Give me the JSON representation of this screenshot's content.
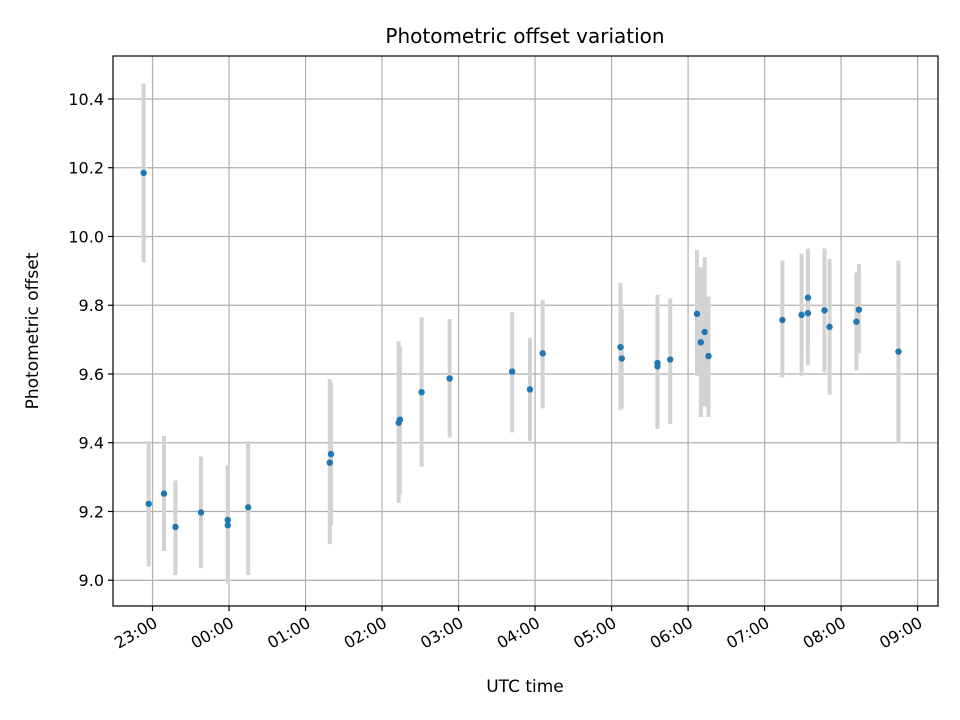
{
  "chart_data": {
    "type": "scatter",
    "title": "Photometric offset variation",
    "xlabel": "UTC time",
    "ylabel": "Photometric offset",
    "xlim": [
      "22:29",
      "09:16"
    ],
    "ylim": [
      8.925,
      10.525
    ],
    "grid": true,
    "x_ticks": [
      "23:00",
      "00:00",
      "01:00",
      "02:00",
      "03:00",
      "04:00",
      "05:00",
      "06:00",
      "07:00",
      "08:00",
      "09:00"
    ],
    "y_ticks": [
      "9.0",
      "9.2",
      "9.4",
      "9.6",
      "9.8",
      "10.0",
      "10.2",
      "10.4"
    ],
    "colors": {
      "points": "#1f77b4",
      "errorbars": "#d3d3d3",
      "grid": "#b0b0b0"
    },
    "series": [
      {
        "values": [
          {
            "x": "22:53",
            "y": 10.185,
            "lo": 9.925,
            "hi": 10.445
          },
          {
            "x": "22:57",
            "y": 9.222,
            "lo": 9.04,
            "hi": 9.405
          },
          {
            "x": "23:09",
            "y": 9.252,
            "lo": 9.085,
            "hi": 9.42
          },
          {
            "x": "23:18",
            "y": 9.155,
            "lo": 9.015,
            "hi": 9.29
          },
          {
            "x": "23:38",
            "y": 9.197,
            "lo": 9.035,
            "hi": 9.36
          },
          {
            "x": "23:59",
            "y": 9.175,
            "lo": 9.0,
            "hi": 9.335
          },
          {
            "x": "23:59",
            "y": 9.16,
            "lo": 8.99,
            "hi": 9.33
          },
          {
            "x": "00:15",
            "y": 9.212,
            "lo": 9.015,
            "hi": 9.405
          },
          {
            "x": "01:19",
            "y": 9.342,
            "lo": 9.105,
            "hi": 9.585
          },
          {
            "x": "01:20",
            "y": 9.367,
            "lo": 9.16,
            "hi": 9.575
          },
          {
            "x": "02:13",
            "y": 9.458,
            "lo": 9.225,
            "hi": 9.695
          },
          {
            "x": "02:14",
            "y": 9.467,
            "lo": 9.25,
            "hi": 9.68
          },
          {
            "x": "02:31",
            "y": 9.547,
            "lo": 9.33,
            "hi": 9.765
          },
          {
            "x": "02:53",
            "y": 9.587,
            "lo": 9.415,
            "hi": 9.76
          },
          {
            "x": "03:42",
            "y": 9.607,
            "lo": 9.43,
            "hi": 9.78
          },
          {
            "x": "03:56",
            "y": 9.555,
            "lo": 9.405,
            "hi": 9.705
          },
          {
            "x": "04:06",
            "y": 9.66,
            "lo": 9.5,
            "hi": 9.815
          },
          {
            "x": "05:07",
            "y": 9.678,
            "lo": 9.495,
            "hi": 9.865
          },
          {
            "x": "05:08",
            "y": 9.645,
            "lo": 9.5,
            "hi": 9.79
          },
          {
            "x": "05:36",
            "y": 9.632,
            "lo": 9.44,
            "hi": 9.83
          },
          {
            "x": "05:36",
            "y": 9.622,
            "lo": 9.45,
            "hi": 9.8
          },
          {
            "x": "05:46",
            "y": 9.642,
            "lo": 9.455,
            "hi": 9.82
          },
          {
            "x": "06:07",
            "y": 9.775,
            "lo": 9.595,
            "hi": 9.96
          },
          {
            "x": "06:10",
            "y": 9.692,
            "lo": 9.475,
            "hi": 9.91
          },
          {
            "x": "06:13",
            "y": 9.722,
            "lo": 9.505,
            "hi": 9.94
          },
          {
            "x": "06:16",
            "y": 9.652,
            "lo": 9.475,
            "hi": 9.825
          },
          {
            "x": "07:14",
            "y": 9.757,
            "lo": 9.59,
            "hi": 9.93
          },
          {
            "x": "07:29",
            "y": 9.772,
            "lo": 9.595,
            "hi": 9.95
          },
          {
            "x": "07:34",
            "y": 9.822,
            "lo": 9.685,
            "hi": 9.965
          },
          {
            "x": "07:34",
            "y": 9.777,
            "lo": 9.625,
            "hi": 9.93
          },
          {
            "x": "07:47",
            "y": 9.785,
            "lo": 9.605,
            "hi": 9.965
          },
          {
            "x": "07:51",
            "y": 9.737,
            "lo": 9.54,
            "hi": 9.935
          },
          {
            "x": "08:12",
            "y": 9.752,
            "lo": 9.61,
            "hi": 9.895
          },
          {
            "x": "08:14",
            "y": 9.787,
            "lo": 9.66,
            "hi": 9.92
          },
          {
            "x": "08:45",
            "y": 9.665,
            "lo": 9.4,
            "hi": 9.93
          }
        ]
      }
    ]
  }
}
